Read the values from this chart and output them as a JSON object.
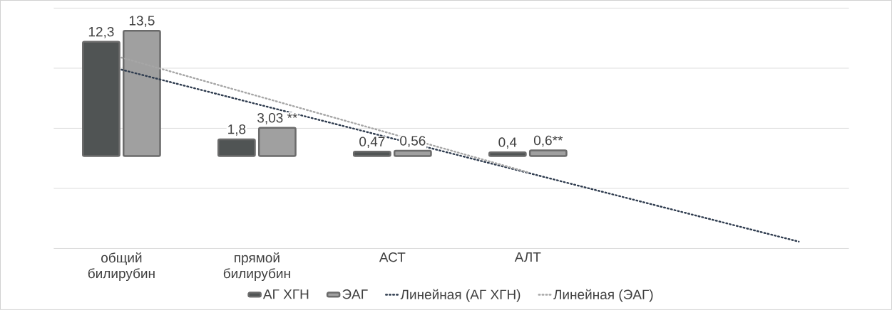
{
  "chart_data": {
    "type": "bar",
    "categories": [
      "общий билирубин",
      "прямой билирубин",
      "АСТ",
      "АЛТ",
      null,
      null
    ],
    "series": [
      {
        "name": "АГ ХГН",
        "color": "#505454",
        "values": [
          12.3,
          1.8,
          0.47,
          0.4,
          null,
          null
        ],
        "value_labels": [
          "12,3",
          "1,8",
          "0,47",
          "0,4",
          null,
          null
        ]
      },
      {
        "name": "ЭАГ",
        "color": "#a0a0a0",
        "values": [
          13.5,
          3.03,
          0.56,
          0.6,
          null,
          null
        ],
        "value_labels": [
          "13,5",
          "3,03 **",
          "0,56",
          "0,6**",
          null,
          null
        ]
      },
      {
        "name": "Линейная (АГ ХГН)",
        "type": "line",
        "values": [
          9.3,
          5.59,
          1.89,
          -1.81,
          -5.52,
          -9.22
        ],
        "color": "#2e3b4e",
        "line_style": "dotted"
      },
      {
        "name": "Линейная (ЭАГ)",
        "type": "line",
        "values": [
          10.6,
          6.48,
          2.37,
          -1.75,
          null,
          null
        ],
        "color": "#a6a6a6",
        "line_style": "dotted"
      }
    ],
    "grid": "y",
    "legend": "bottom"
  }
}
